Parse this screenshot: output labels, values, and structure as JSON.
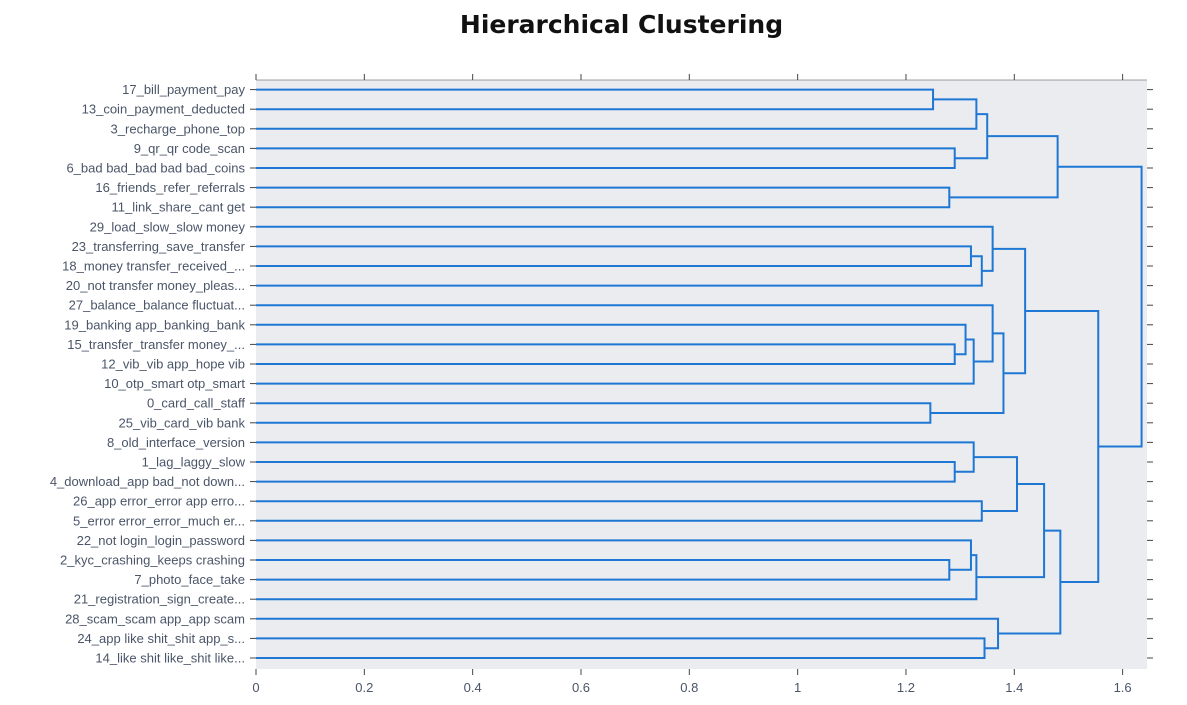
{
  "chart_data": {
    "type": "dendrogram",
    "title": "Hierarchical Clustering",
    "orientation": "horizontal",
    "xlim": [
      0,
      1.645
    ],
    "x_ticks": [
      0,
      0.2,
      0.4,
      0.6,
      0.8,
      1,
      1.2,
      1.4,
      1.6
    ],
    "x_tick_labels": [
      "0",
      "0.2",
      "0.4",
      "0.6",
      "0.8",
      "1",
      "1.2",
      "1.4",
      "1.6"
    ],
    "line_color": "#1f77d4",
    "plot_bg": "#eaecf0",
    "leaves": [
      "17_bill_payment_pay",
      "13_coin_payment_deducted",
      "3_recharge_phone_top",
      "9_qr_qr code_scan",
      "6_bad bad_bad bad bad_coins",
      "16_friends_refer_referrals",
      "11_link_share_cant get",
      "29_load_slow_slow money",
      "23_transferring_save_transfer",
      "18_money transfer_received_...",
      "20_not transfer money_pleas...",
      "27_balance_balance fluctuat...",
      "19_banking app_banking_bank",
      "15_transfer_transfer money_...",
      "12_vib_vib app_hope vib",
      "10_otp_smart otp_smart",
      "0_card_call_staff",
      "25_vib_card_vib bank",
      "8_old_interface_version",
      "1_lag_laggy_slow",
      "4_download_app bad_not down...",
      "26_app error_error app erro...",
      "5_error error_error_much er...",
      "22_not login_login_password",
      "2_kyc_crashing_keeps crashing",
      "7_photo_face_take",
      "21_registration_sign_create...",
      "28_scam_scam app_app scam",
      "24_app like shit_shit app_s...",
      "14_like shit like_shit like..."
    ],
    "merges": [
      {
        "left": "L0",
        "right": "L1",
        "height": 1.25
      },
      {
        "left": "M0",
        "right": "L2",
        "height": 1.33
      },
      {
        "left": "L3",
        "right": "L4",
        "height": 1.29
      },
      {
        "left": "M1",
        "right": "M2",
        "height": 1.35
      },
      {
        "left": "L5",
        "right": "L6",
        "height": 1.28
      },
      {
        "left": "M3",
        "right": "M4",
        "height": 1.48
      },
      {
        "left": "L8",
        "right": "L9",
        "height": 1.32
      },
      {
        "left": "M6",
        "right": "L10",
        "height": 1.34
      },
      {
        "left": "L7",
        "right": "M7",
        "height": 1.36
      },
      {
        "left": "L13",
        "right": "L14",
        "height": 1.29
      },
      {
        "left": "L12",
        "right": "M9",
        "height": 1.31
      },
      {
        "left": "M10",
        "right": "L15",
        "height": 1.325
      },
      {
        "left": "L11",
        "right": "M11",
        "height": 1.36
      },
      {
        "left": "L16",
        "right": "L17",
        "height": 1.245
      },
      {
        "left": "M12",
        "right": "M13",
        "height": 1.38
      },
      {
        "left": "M8",
        "right": "M14",
        "height": 1.42
      },
      {
        "left": "L19",
        "right": "L20",
        "height": 1.29
      },
      {
        "left": "L18",
        "right": "M16",
        "height": 1.325
      },
      {
        "left": "L21",
        "right": "L22",
        "height": 1.34
      },
      {
        "left": "M17",
        "right": "M18",
        "height": 1.405
      },
      {
        "left": "L24",
        "right": "L25",
        "height": 1.28
      },
      {
        "left": "L23",
        "right": "M20",
        "height": 1.32
      },
      {
        "left": "M21",
        "right": "L26",
        "height": 1.33
      },
      {
        "left": "M19",
        "right": "M22",
        "height": 1.455
      },
      {
        "left": "L28",
        "right": "L29",
        "height": 1.345
      },
      {
        "left": "L27",
        "right": "M24",
        "height": 1.37
      },
      {
        "left": "M23",
        "right": "M25",
        "height": 1.485
      },
      {
        "left": "M15",
        "right": "M26",
        "height": 1.555
      },
      {
        "left": "M5",
        "right": "M27",
        "height": 1.635
      }
    ]
  }
}
